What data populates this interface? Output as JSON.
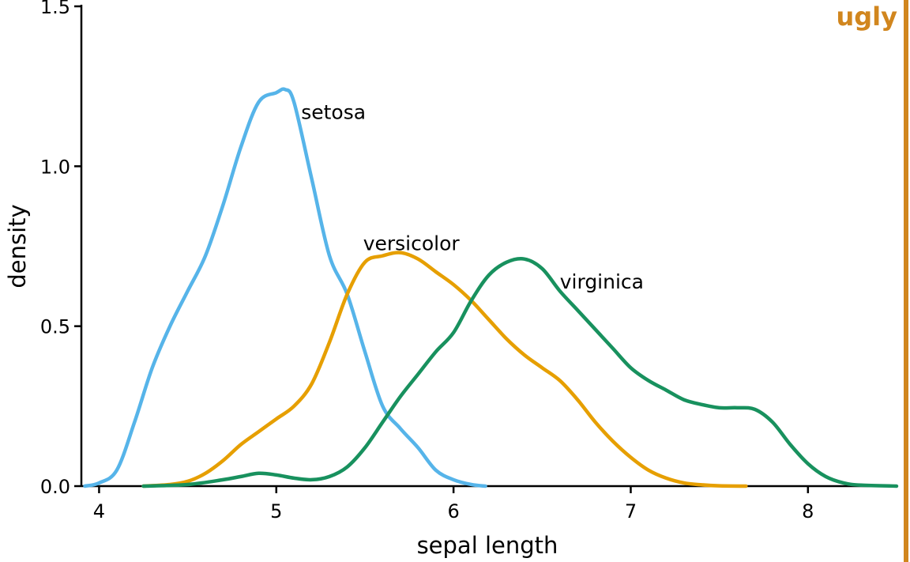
{
  "stamp": {
    "text": "ugly",
    "color": "#d1861e"
  },
  "chart_data": {
    "type": "line",
    "xlabel": "sepal length",
    "ylabel": "density",
    "xlim": [
      3.9,
      8.5
    ],
    "ylim": [
      0,
      1.5
    ],
    "xticks": [
      4,
      5,
      6,
      7,
      8
    ],
    "yticks": [
      0.0,
      0.5,
      1.0,
      1.5
    ],
    "ytick_labels": [
      "0.0",
      "0.5",
      "1.0",
      "1.5"
    ],
    "grid": false,
    "legend": "direct labels",
    "series": [
      {
        "name": "setosa",
        "color": "#56b4e9",
        "label_at": [
          5.14,
          1.17
        ],
        "x": [
          3.92,
          4.0,
          4.1,
          4.2,
          4.3,
          4.4,
          4.5,
          4.6,
          4.7,
          4.8,
          4.9,
          5.0,
          5.05,
          5.1,
          5.2,
          5.3,
          5.4,
          5.5,
          5.6,
          5.7,
          5.8,
          5.9,
          6.0,
          6.1,
          6.18
        ],
        "y": [
          0.0,
          0.01,
          0.05,
          0.2,
          0.37,
          0.5,
          0.61,
          0.72,
          0.88,
          1.06,
          1.2,
          1.23,
          1.24,
          1.2,
          0.96,
          0.72,
          0.6,
          0.42,
          0.25,
          0.18,
          0.12,
          0.05,
          0.02,
          0.005,
          0.0
        ]
      },
      {
        "name": "versicolor",
        "color": "#e69f00",
        "label_at": [
          5.49,
          0.76
        ],
        "x": [
          4.25,
          4.4,
          4.5,
          4.6,
          4.7,
          4.8,
          4.9,
          5.0,
          5.1,
          5.2,
          5.3,
          5.4,
          5.5,
          5.6,
          5.7,
          5.8,
          5.9,
          6.0,
          6.1,
          6.2,
          6.3,
          6.4,
          6.5,
          6.6,
          6.7,
          6.8,
          6.9,
          7.0,
          7.1,
          7.2,
          7.3,
          7.4,
          7.5,
          7.65
        ],
        "y": [
          0.0,
          0.005,
          0.015,
          0.04,
          0.08,
          0.13,
          0.17,
          0.21,
          0.25,
          0.32,
          0.45,
          0.6,
          0.7,
          0.72,
          0.73,
          0.71,
          0.67,
          0.63,
          0.58,
          0.52,
          0.46,
          0.41,
          0.37,
          0.33,
          0.27,
          0.2,
          0.14,
          0.09,
          0.05,
          0.025,
          0.01,
          0.004,
          0.001,
          0.0
        ]
      },
      {
        "name": "virginica",
        "color": "#18915e",
        "label_at": [
          6.6,
          0.64
        ],
        "x": [
          4.25,
          4.5,
          4.7,
          4.8,
          4.9,
          5.0,
          5.1,
          5.2,
          5.3,
          5.4,
          5.5,
          5.6,
          5.7,
          5.8,
          5.9,
          6.0,
          6.1,
          6.2,
          6.3,
          6.4,
          6.5,
          6.6,
          6.7,
          6.8,
          6.9,
          7.0,
          7.1,
          7.2,
          7.3,
          7.4,
          7.5,
          7.6,
          7.7,
          7.8,
          7.9,
          8.0,
          8.1,
          8.2,
          8.3,
          8.5
        ],
        "y": [
          0.0,
          0.005,
          0.02,
          0.03,
          0.04,
          0.035,
          0.025,
          0.02,
          0.03,
          0.06,
          0.12,
          0.2,
          0.28,
          0.35,
          0.42,
          0.48,
          0.58,
          0.66,
          0.7,
          0.71,
          0.68,
          0.61,
          0.55,
          0.49,
          0.43,
          0.37,
          0.33,
          0.3,
          0.27,
          0.255,
          0.245,
          0.245,
          0.24,
          0.2,
          0.13,
          0.07,
          0.03,
          0.01,
          0.003,
          0.0
        ]
      }
    ]
  }
}
